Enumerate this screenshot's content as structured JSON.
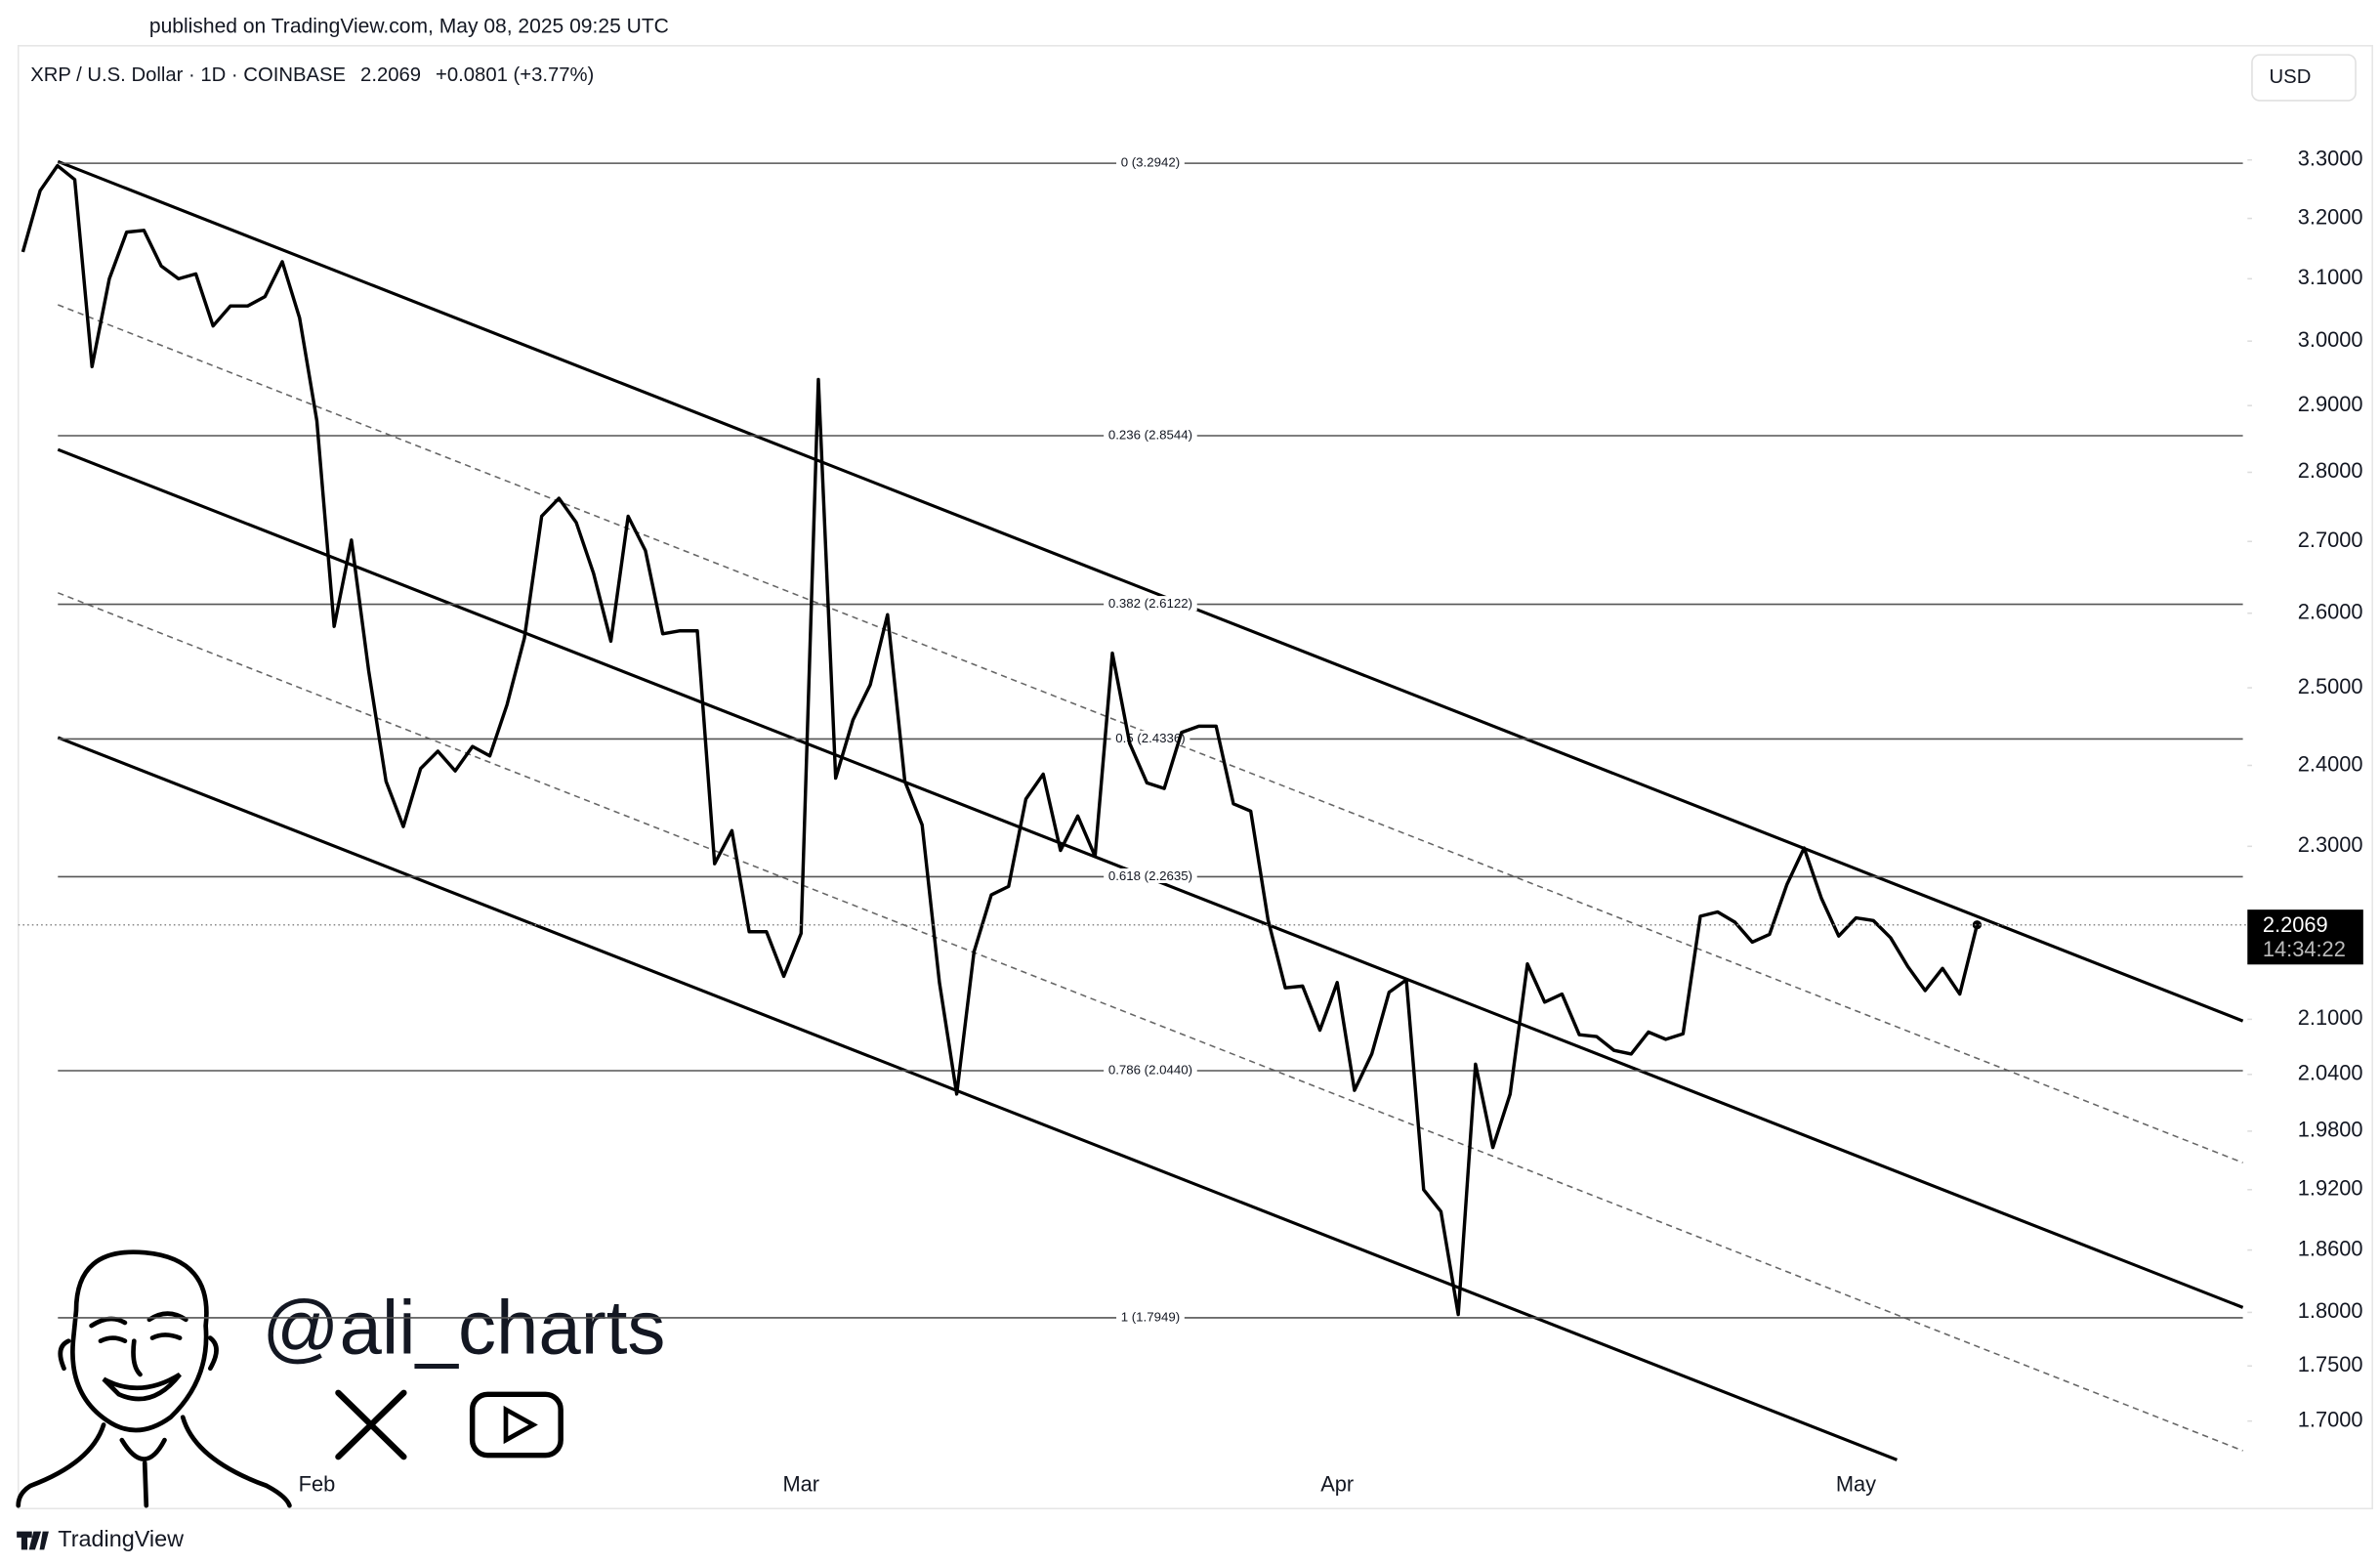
{
  "published": "published on TradingView.com, May 08, 2025 09:25 UTC",
  "watermark": "@ali_charts",
  "brand": "TradingView",
  "chart_data": {
    "type": "line",
    "title": "XRP / U.S. Dollar · 1D · COINBASE",
    "change": "+0.0801 (+3.77%)",
    "currency": "USD",
    "countdown": "14:34:22",
    "log_scale": true,
    "grid": false,
    "categories": [
      null,
      null,
      null,
      null,
      null,
      null,
      null,
      null,
      null,
      null,
      null,
      null,
      null,
      null,
      null,
      null,
      null,
      "Feb",
      null,
      null,
      null,
      null,
      null,
      null,
      null,
      null,
      null,
      null,
      null,
      null,
      null,
      null,
      null,
      null,
      null,
      null,
      null,
      null,
      null,
      null,
      null,
      null,
      null,
      null,
      null,
      "Mar",
      null,
      null,
      null,
      null,
      null,
      null,
      null,
      null,
      null,
      null,
      null,
      null,
      null,
      null,
      null,
      null,
      null,
      null,
      null,
      null,
      null,
      null,
      null,
      null,
      null,
      null,
      null,
      null,
      null,
      null,
      "Apr",
      null,
      null,
      null,
      null,
      null,
      null,
      null,
      null,
      null,
      null,
      null,
      null,
      null,
      null,
      null,
      null,
      null,
      null,
      null,
      null,
      null,
      null,
      null,
      null,
      null,
      null,
      null,
      null,
      null,
      "May",
      null,
      null,
      null,
      null,
      null,
      null,
      null
    ],
    "series": [
      {
        "color": "#000000",
        "values": [
          3.144,
          3.247,
          3.29,
          3.266,
          2.96,
          3.1,
          3.177,
          3.18,
          3.121,
          3.1,
          3.108,
          3.024,
          3.056,
          3.056,
          3.071,
          3.128,
          3.037,
          2.877,
          2.582,
          2.702,
          2.522,
          2.38,
          2.324,
          2.396,
          2.418,
          2.393,
          2.424,
          2.412,
          2.478,
          2.566,
          2.736,
          2.762,
          2.727,
          2.655,
          2.562,
          2.736,
          2.687,
          2.572,
          2.576,
          2.576,
          2.279,
          2.319,
          2.199,
          2.199,
          2.148,
          2.197,
          2.94,
          2.384,
          2.458,
          2.504,
          2.598,
          2.38,
          2.326,
          2.141,
          2.019,
          2.176,
          2.242,
          2.252,
          2.358,
          2.389,
          2.295,
          2.337,
          2.288,
          2.546,
          2.428,
          2.378,
          2.371,
          2.442,
          2.45,
          2.45,
          2.352,
          2.343,
          2.213,
          2.135,
          2.137,
          2.088,
          2.141,
          2.023,
          2.062,
          2.13,
          2.144,
          1.92,
          1.898,
          1.798,
          2.051,
          1.963,
          2.019,
          2.162,
          2.119,
          2.128,
          2.083,
          2.081,
          2.066,
          2.062,
          2.086,
          2.078,
          2.084,
          2.217,
          2.222,
          2.21,
          2.187,
          2.196,
          2.254,
          2.298,
          2.238,
          2.194,
          2.215,
          2.212,
          2.192,
          2.159,
          2.132,
          2.157,
          2.128,
          2.2069
        ]
      }
    ],
    "ylim": [
      1.663,
      3.421
    ],
    "yticks": [
      {
        "value": 3.3,
        "label": "3.3000"
      },
      {
        "value": 3.2,
        "label": "3.2000"
      },
      {
        "value": 3.1,
        "label": "3.1000"
      },
      {
        "value": 3.0,
        "label": "3.0000"
      },
      {
        "value": 2.9,
        "label": "2.9000"
      },
      {
        "value": 2.8,
        "label": "2.8000"
      },
      {
        "value": 2.7,
        "label": "2.7000"
      },
      {
        "value": 2.6,
        "label": "2.6000"
      },
      {
        "value": 2.5,
        "label": "2.5000"
      },
      {
        "value": 2.4,
        "label": "2.4000"
      },
      {
        "value": 2.3,
        "label": "2.3000"
      },
      {
        "value": 2.1,
        "label": "2.1000"
      },
      {
        "value": 2.04,
        "label": "2.0400"
      },
      {
        "value": 1.98,
        "label": "1.9800"
      },
      {
        "value": 1.92,
        "label": "1.9200"
      },
      {
        "value": 1.86,
        "label": "1.8600"
      },
      {
        "value": 1.8,
        "label": "1.8000"
      },
      {
        "value": 1.75,
        "label": "1.7500"
      },
      {
        "value": 1.7,
        "label": "1.7000"
      }
    ],
    "fib_levels": [
      {
        "value": 3.2942,
        "label": "0 (3.2942)"
      },
      {
        "value": 2.8544,
        "label": "0.236 (2.8544)"
      },
      {
        "value": 2.6122,
        "label": "0.382 (2.6122)"
      },
      {
        "value": 2.4336,
        "label": "0.5 (2.4336)"
      },
      {
        "value": 2.2635,
        "label": "0.618 (2.2635)"
      },
      {
        "value": 2.044,
        "label": "0.786 (2.0440)"
      },
      {
        "value": 1.7949,
        "label": "1 (1.7949)"
      }
    ]
  }
}
